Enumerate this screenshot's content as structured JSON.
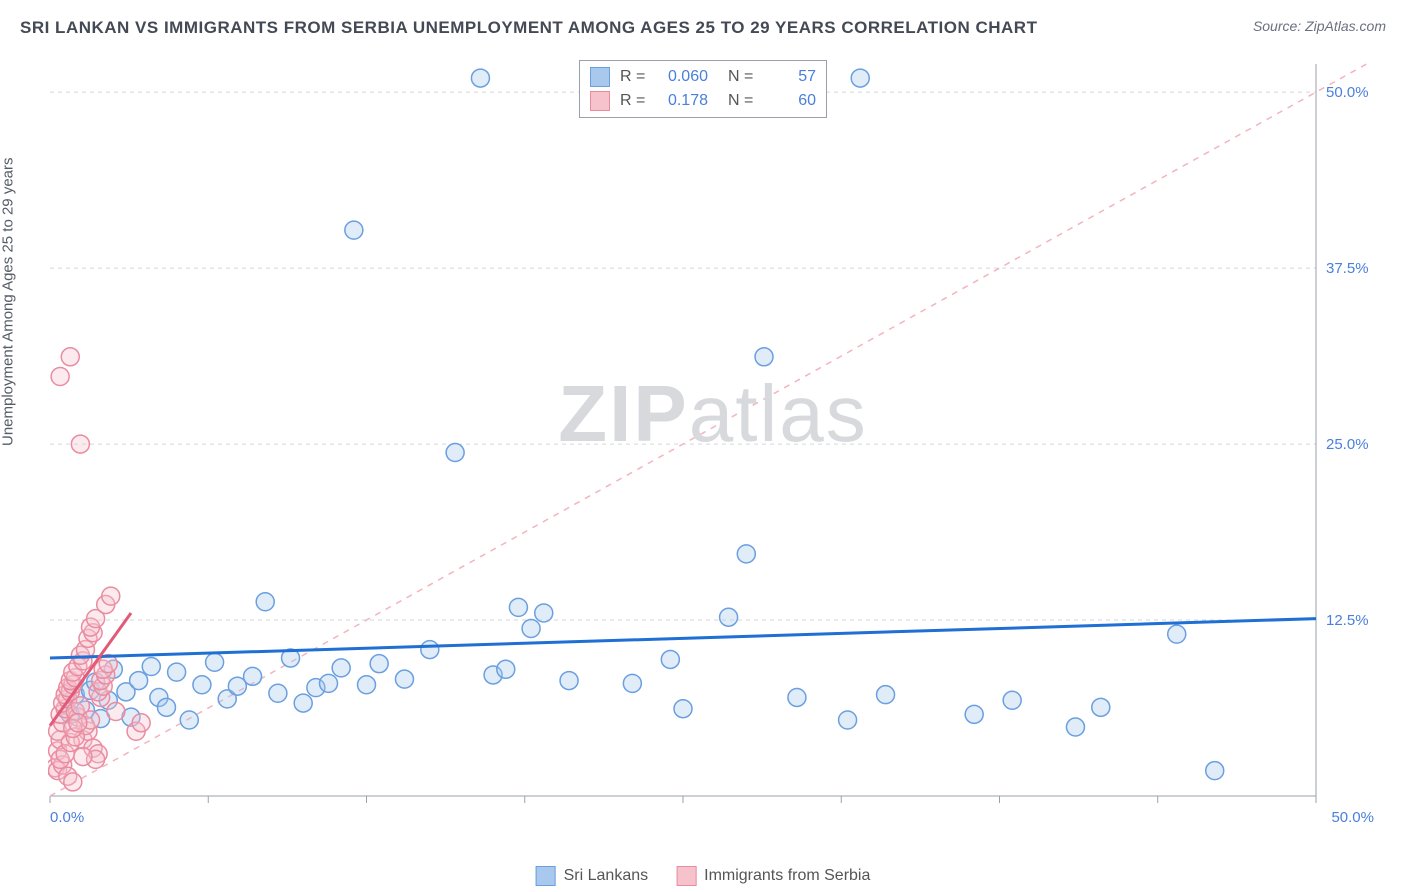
{
  "title": "SRI LANKAN VS IMMIGRANTS FROM SERBIA UNEMPLOYMENT AMONG AGES 25 TO 29 YEARS CORRELATION CHART",
  "source": "Source: ZipAtlas.com",
  "watermark": {
    "bold": "ZIP",
    "rest": "atlas"
  },
  "ylabel": "Unemployment Among Ages 25 to 29 years",
  "chart": {
    "type": "scatter",
    "background_color": "#ffffff",
    "grid_color": "#d4d6db",
    "axis_color": "#9aa0ab",
    "tick_color": "#9aa0ab",
    "axis_label_color": "#4a7fdc",
    "xlim": [
      0,
      50
    ],
    "ylim": [
      0,
      52
    ],
    "x_ticks": [
      0,
      6.25,
      12.5,
      18.75,
      25,
      31.25,
      37.5,
      43.75,
      50
    ],
    "y_gridlines": [
      12.5,
      25,
      37.5,
      50
    ],
    "y_tick_labels": [
      {
        "v": 12.5,
        "t": "12.5%"
      },
      {
        "v": 25,
        "t": "25.0%"
      },
      {
        "v": 37.5,
        "t": "37.5%"
      },
      {
        "v": 50,
        "t": "50.0%"
      }
    ],
    "x_axis_labels": [
      {
        "v": 0,
        "t": "0.0%"
      },
      {
        "v": 50,
        "t": "50.0%"
      }
    ],
    "marker_radius": 9,
    "marker_stroke_width": 1.5,
    "marker_fill_opacity": 0.35,
    "trend_line_width": 3,
    "identity_line": {
      "color": "#f3b4bd",
      "dash": "6 6",
      "width": 1.5,
      "from": [
        0,
        0
      ],
      "to": [
        52,
        52
      ]
    },
    "series": [
      {
        "name": "Sri Lankans",
        "color_stroke": "#6a9fe0",
        "color_fill": "#a9c8ed",
        "stats": {
          "R": "0.060",
          "N": "57"
        },
        "trend": {
          "x1": 0,
          "y1": 9.8,
          "x2": 50,
          "y2": 12.6,
          "color": "#1f6fd4"
        },
        "points": [
          [
            0.8,
            5.8
          ],
          [
            1.0,
            7.2
          ],
          [
            1.4,
            6.1
          ],
          [
            1.6,
            7.5
          ],
          [
            1.8,
            8.1
          ],
          [
            2.0,
            5.5
          ],
          [
            2.3,
            6.8
          ],
          [
            2.5,
            9.0
          ],
          [
            3.0,
            7.4
          ],
          [
            3.2,
            5.6
          ],
          [
            3.5,
            8.2
          ],
          [
            4.0,
            9.2
          ],
          [
            4.3,
            7.0
          ],
          [
            4.6,
            6.3
          ],
          [
            5.0,
            8.8
          ],
          [
            5.5,
            5.4
          ],
          [
            6.0,
            7.9
          ],
          [
            6.5,
            9.5
          ],
          [
            7.0,
            6.9
          ],
          [
            7.4,
            7.8
          ],
          [
            8.0,
            8.5
          ],
          [
            8.5,
            13.8
          ],
          [
            9.0,
            7.3
          ],
          [
            9.5,
            9.8
          ],
          [
            10.0,
            6.6
          ],
          [
            10.5,
            7.7
          ],
          [
            11.0,
            8.0
          ],
          [
            11.5,
            9.1
          ],
          [
            12.0,
            40.2
          ],
          [
            12.5,
            7.9
          ],
          [
            13.0,
            9.4
          ],
          [
            14.0,
            8.3
          ],
          [
            15.0,
            10.4
          ],
          [
            16.0,
            24.4
          ],
          [
            17.0,
            51.0
          ],
          [
            17.5,
            8.6
          ],
          [
            18.0,
            9.0
          ],
          [
            18.5,
            13.4
          ],
          [
            19.0,
            11.9
          ],
          [
            19.5,
            13.0
          ],
          [
            20.5,
            8.2
          ],
          [
            23.0,
            8.0
          ],
          [
            24.5,
            9.7
          ],
          [
            25.0,
            6.2
          ],
          [
            26.8,
            12.7
          ],
          [
            27.5,
            17.2
          ],
          [
            28.2,
            31.2
          ],
          [
            29.5,
            7.0
          ],
          [
            31.5,
            5.4
          ],
          [
            33.0,
            7.2
          ],
          [
            36.5,
            5.8
          ],
          [
            38.0,
            6.8
          ],
          [
            40.5,
            4.9
          ],
          [
            41.5,
            6.3
          ],
          [
            44.5,
            11.5
          ],
          [
            46.0,
            1.8
          ],
          [
            32.0,
            51.0
          ]
        ]
      },
      {
        "name": "Immigrants from Serbia",
        "color_stroke": "#e98ca0",
        "color_fill": "#f6c3cd",
        "stats": {
          "R": "0.178",
          "N": "60"
        },
        "trend": {
          "x1": 0,
          "y1": 5.0,
          "x2": 3.2,
          "y2": 13.0,
          "color": "#e15b78"
        },
        "points": [
          [
            0.2,
            2.0
          ],
          [
            0.3,
            3.2
          ],
          [
            0.4,
            4.0
          ],
          [
            0.3,
            4.6
          ],
          [
            0.5,
            5.2
          ],
          [
            0.4,
            5.8
          ],
          [
            0.6,
            6.2
          ],
          [
            0.5,
            6.6
          ],
          [
            0.7,
            6.9
          ],
          [
            0.6,
            7.2
          ],
          [
            0.8,
            7.4
          ],
          [
            0.7,
            7.7
          ],
          [
            0.9,
            7.9
          ],
          [
            0.8,
            8.2
          ],
          [
            1.0,
            8.4
          ],
          [
            0.9,
            8.8
          ],
          [
            1.1,
            5.6
          ],
          [
            1.0,
            6.0
          ],
          [
            1.2,
            6.4
          ],
          [
            1.1,
            9.2
          ],
          [
            1.3,
            9.6
          ],
          [
            1.2,
            10.0
          ],
          [
            1.4,
            10.4
          ],
          [
            1.3,
            4.0
          ],
          [
            1.5,
            4.6
          ],
          [
            1.4,
            5.0
          ],
          [
            1.6,
            5.4
          ],
          [
            1.5,
            11.2
          ],
          [
            1.7,
            11.6
          ],
          [
            1.6,
            12.0
          ],
          [
            1.8,
            12.6
          ],
          [
            1.7,
            3.4
          ],
          [
            1.9,
            3.0
          ],
          [
            1.8,
            2.6
          ],
          [
            2.0,
            7.0
          ],
          [
            1.9,
            7.4
          ],
          [
            2.1,
            7.8
          ],
          [
            2.0,
            8.2
          ],
          [
            2.2,
            8.6
          ],
          [
            2.1,
            9.0
          ],
          [
            2.3,
            9.4
          ],
          [
            2.2,
            13.6
          ],
          [
            2.4,
            14.2
          ],
          [
            0.3,
            1.8
          ],
          [
            0.5,
            2.2
          ],
          [
            0.4,
            2.6
          ],
          [
            0.6,
            3.0
          ],
          [
            0.8,
            3.8
          ],
          [
            1.0,
            4.2
          ],
          [
            0.9,
            4.8
          ],
          [
            1.1,
            5.2
          ],
          [
            0.4,
            29.8
          ],
          [
            0.8,
            31.2
          ],
          [
            1.2,
            25.0
          ],
          [
            3.4,
            4.6
          ],
          [
            3.6,
            5.2
          ],
          [
            0.7,
            1.4
          ],
          [
            0.9,
            1.0
          ],
          [
            1.3,
            2.8
          ],
          [
            2.6,
            6.0
          ]
        ]
      }
    ],
    "stats_legend": {
      "border_color": "#9aa0ab",
      "rows": [
        {
          "swatch_fill": "#a9c8ed",
          "swatch_stroke": "#6a9fe0",
          "R": "0.060",
          "N": "57",
          "value_color": "#4a7fdc"
        },
        {
          "swatch_fill": "#f6c3cd",
          "swatch_stroke": "#e98ca0",
          "R": "0.178",
          "N": "60",
          "value_color": "#4a7fdc"
        }
      ]
    },
    "bottom_legend": [
      {
        "swatch_fill": "#a9c8ed",
        "swatch_stroke": "#6a9fe0",
        "label": "Sri Lankans"
      },
      {
        "swatch_fill": "#f6c3cd",
        "swatch_stroke": "#e98ca0",
        "label": "Immigrants from Serbia"
      }
    ]
  }
}
